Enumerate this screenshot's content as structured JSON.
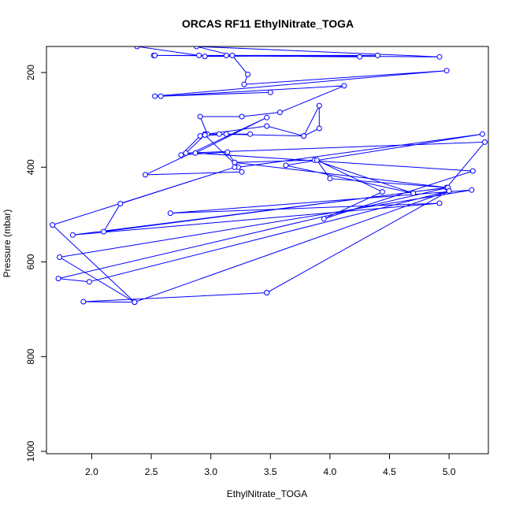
{
  "chart_data": {
    "type": "line",
    "title": "ORCAS RF11 EthylNitrate_TOGA",
    "xlabel": "EthylNitrate_TOGA",
    "ylabel": "Pressure (mbar)",
    "xlim": [
      1.62,
      5.33
    ],
    "ylim": [
      1005,
      145
    ],
    "y_reversed": true,
    "grid": false,
    "x_ticks": [
      2.0,
      2.5,
      3.0,
      3.5,
      4.0,
      4.5,
      5.0
    ],
    "x_tick_labels": [
      "2.0",
      "2.5",
      "3.0",
      "3.5",
      "4.0",
      "4.5",
      "5.0"
    ],
    "y_ticks": [
      200,
      400,
      600,
      800,
      1000
    ],
    "y_tick_labels": [
      "200",
      "400",
      "600",
      "800",
      "1000"
    ],
    "series": [
      {
        "color": "#0000ff",
        "marker": "open-circle",
        "points": [
          [
            2.38,
            145
          ],
          [
            2.9,
            164
          ],
          [
            2.95,
            166
          ],
          [
            4.4,
            164
          ],
          [
            2.52,
            164
          ],
          [
            4.25,
            167
          ],
          [
            2.53,
            164
          ],
          [
            3.13,
            164
          ],
          [
            4.92,
            167
          ],
          [
            2.88,
            145
          ],
          [
            3.18,
            164
          ],
          [
            3.31,
            204
          ],
          [
            3.28,
            225
          ],
          [
            4.98,
            196
          ],
          [
            2.53,
            250
          ],
          [
            3.5,
            242
          ],
          [
            2.58,
            250
          ],
          [
            4.12,
            228
          ],
          [
            3.58,
            284
          ],
          [
            3.26,
            293
          ],
          [
            2.91,
            293
          ],
          [
            2.97,
            330
          ],
          [
            3.47,
            313
          ],
          [
            3.78,
            334
          ],
          [
            3.91,
            318
          ],
          [
            3.91,
            270
          ],
          [
            3.78,
            334
          ],
          [
            3.07,
            330
          ],
          [
            3.33,
            330
          ],
          [
            2.95,
            330
          ],
          [
            3.13,
            330
          ],
          [
            2.91,
            334
          ],
          [
            2.75,
            374
          ],
          [
            3.14,
            368
          ],
          [
            3.2,
            390
          ],
          [
            3.87,
            385
          ],
          [
            4.7,
            455
          ],
          [
            3.63,
            396
          ],
          [
            5.28,
            330
          ],
          [
            3.23,
            400
          ],
          [
            2.95,
            332
          ],
          [
            2.79,
            370
          ],
          [
            5.3,
            347
          ],
          [
            4.98,
            443
          ],
          [
            3.2,
            390
          ],
          [
            3.26,
            410
          ],
          [
            2.45,
            416
          ],
          [
            3.47,
            295
          ],
          [
            2.87,
            370
          ],
          [
            5.2,
            408
          ],
          [
            3.95,
            509
          ],
          [
            4.44,
            452
          ],
          [
            3.89,
            385
          ],
          [
            4.0,
            424
          ],
          [
            4.98,
            443
          ],
          [
            2.1,
            536
          ],
          [
            2.24,
            477
          ],
          [
            3.2,
            400
          ],
          [
            1.67,
            522
          ],
          [
            2.36,
            685
          ],
          [
            1.73,
            590
          ],
          [
            5.19,
            448
          ],
          [
            2.66,
            497
          ],
          [
            4.92,
            476
          ],
          [
            1.84,
            543
          ],
          [
            4.99,
            443
          ],
          [
            1.72,
            635
          ],
          [
            1.98,
            642
          ],
          [
            5.0,
            450
          ],
          [
            3.47,
            665
          ],
          [
            1.93,
            684
          ],
          [
            2.36,
            685
          ],
          [
            5.0,
            450
          ],
          [
            3.47,
            665
          ]
        ]
      }
    ]
  }
}
